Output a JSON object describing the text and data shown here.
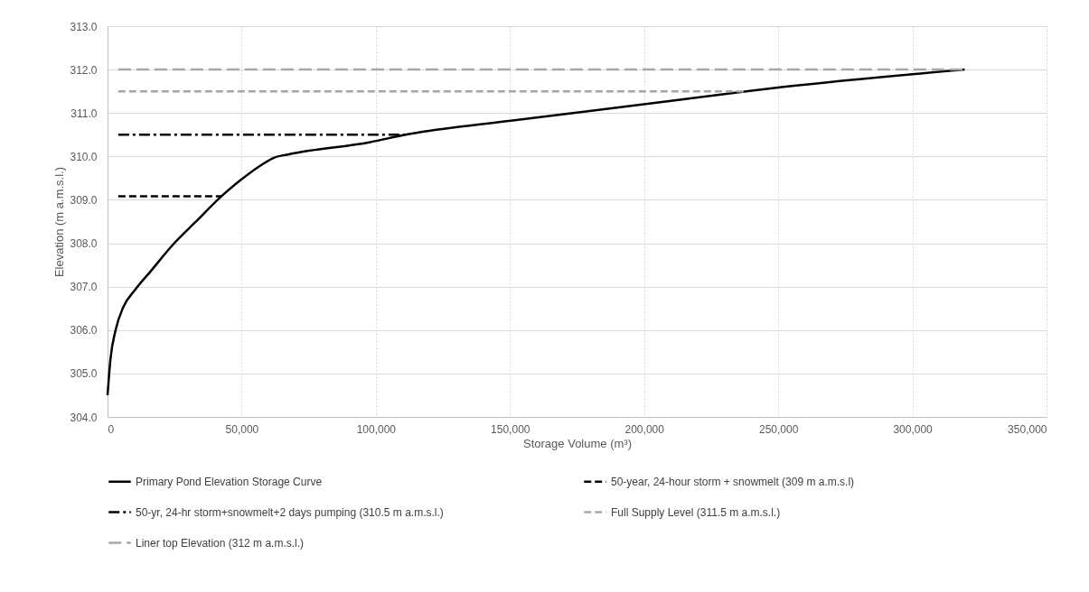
{
  "chart_data": {
    "type": "line",
    "xlabel": "Storage Volume (m³)",
    "ylabel": "Elevation (m a.m.s.l.)",
    "xlim": [
      0,
      350000
    ],
    "ylim": [
      304,
      313
    ],
    "xticks": [
      {
        "value": 0,
        "label": "0"
      },
      {
        "value": 50000,
        "label": "50,000"
      },
      {
        "value": 100000,
        "label": "100,000"
      },
      {
        "value": 150000,
        "label": "150,000"
      },
      {
        "value": 200000,
        "label": "200,000"
      },
      {
        "value": 250000,
        "label": "250,000"
      },
      {
        "value": 300000,
        "label": "300,000"
      },
      {
        "value": 350000,
        "label": "350,000"
      }
    ],
    "yticks": [
      {
        "value": 304,
        "label": "304.0"
      },
      {
        "value": 305,
        "label": "305.0"
      },
      {
        "value": 306,
        "label": "306.0"
      },
      {
        "value": 307,
        "label": "307.0"
      },
      {
        "value": 308,
        "label": "308.0"
      },
      {
        "value": 309,
        "label": "309.0"
      },
      {
        "value": 310,
        "label": "310.0"
      },
      {
        "value": 311,
        "label": "311.0"
      },
      {
        "value": 312,
        "label": "312.0"
      },
      {
        "value": 313,
        "label": "313.0"
      }
    ],
    "grid": true,
    "legend": "bottom",
    "marker": "none",
    "series": [
      {
        "name": "Primary Pond Elevation Storage Curve",
        "color": "#000000",
        "line_style": "solid",
        "x": [
          0,
          1100,
          3000,
          5800,
          10300,
          16000,
          24400,
          32800,
          42400,
          49700,
          57500,
          62000,
          67600,
          98000,
          111000,
          151000,
          200000,
          238000,
          252000,
          319500
        ],
        "values": [
          304.5,
          305.34,
          306.0,
          306.52,
          306.93,
          307.35,
          307.97,
          308.49,
          309.08,
          309.46,
          309.81,
          309.97,
          310.05,
          310.33,
          310.5,
          310.83,
          311.2,
          311.5,
          311.6,
          312.0
        ]
      },
      {
        "name": "50-year, 24-hour storm + snowmelt (309 m a.m.s.l)",
        "color": "#000000",
        "line_style": "dashed",
        "x": [
          4000,
          42400
        ],
        "values": [
          309.08,
          309.08
        ]
      },
      {
        "name": "50-yr, 24-hr storm+snowmelt+2 days pumping (310.5 m a.m.s.l.)",
        "color": "#000000",
        "line_style": "dashdot",
        "x": [
          4000,
          111000
        ],
        "values": [
          310.5,
          310.5
        ]
      },
      {
        "name": "Full Supply Level (311.5 m a.m.s.l.)",
        "color": "#a6a6a6",
        "line_style": "dashed",
        "x": [
          4000,
          238000
        ],
        "values": [
          311.5,
          311.5
        ]
      },
      {
        "name": "Liner top Elevation (312 m a.m.s.l.)",
        "color": "#a6a6a6",
        "line_style": "longdash",
        "x": [
          4000,
          319500
        ],
        "values": [
          312,
          312
        ]
      }
    ]
  }
}
